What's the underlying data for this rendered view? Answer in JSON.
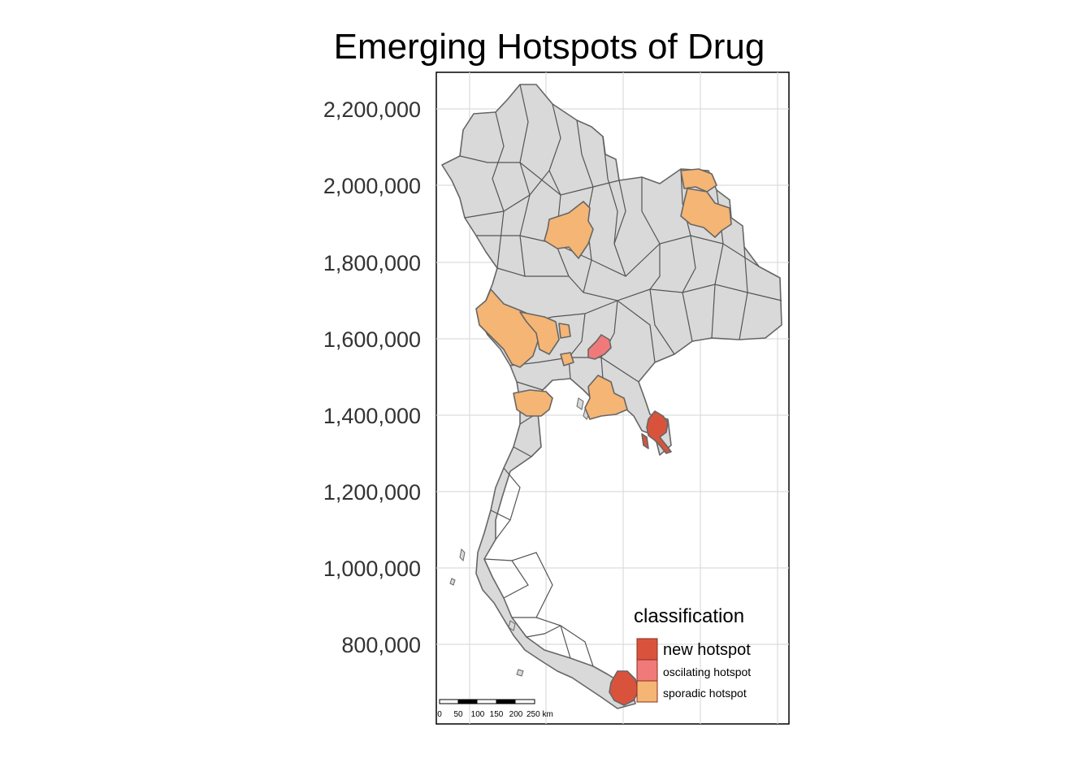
{
  "map": {
    "title": "Emerging Hotspots of Drug",
    "y_axis_ticks": [
      "2,200,000",
      "2,000,000",
      "1,800,000",
      "1,600,000",
      "1,400,000",
      "1,200,000",
      "1,000,000",
      "800,000"
    ],
    "base_fill": "#d9d9d9",
    "outline_color": "#666666"
  },
  "legend": {
    "title": "classification",
    "items": [
      {
        "label": "new hotspot",
        "color": "#d9533c"
      },
      {
        "label": "oscilating hotspot",
        "color": "#f07a7a"
      },
      {
        "label": "sporadic hotspot",
        "color": "#f5b574"
      }
    ]
  },
  "scalebar": {
    "labels": [
      "0",
      "50",
      "100",
      "150",
      "200",
      "250 km"
    ]
  },
  "hotspots": [
    {
      "region": "north-central",
      "class": "sporadic hotspot"
    },
    {
      "region": "northeast-top",
      "class": "sporadic hotspot"
    },
    {
      "region": "northeast",
      "class": "sporadic hotspot"
    },
    {
      "region": "west",
      "class": "sporadic hotspot"
    },
    {
      "region": "west-central-1",
      "class": "sporadic hotspot"
    },
    {
      "region": "west-central-2",
      "class": "sporadic hotspot"
    },
    {
      "region": "central",
      "class": "oscilating hotspot"
    },
    {
      "region": "central-small",
      "class": "sporadic hotspot"
    },
    {
      "region": "southwest",
      "class": "sporadic hotspot"
    },
    {
      "region": "east-central",
      "class": "sporadic hotspot"
    },
    {
      "region": "east-coast",
      "class": "new hotspot"
    },
    {
      "region": "far-south",
      "class": "new hotspot"
    }
  ]
}
